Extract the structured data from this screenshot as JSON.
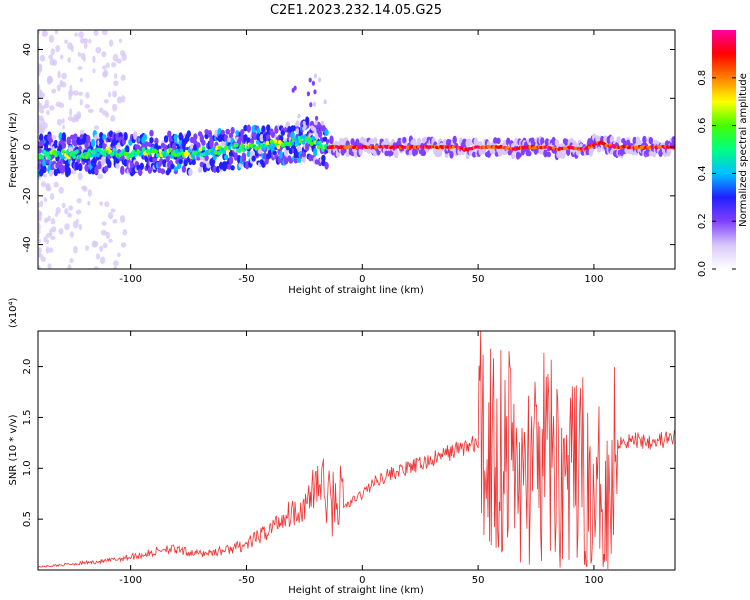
{
  "title": "C2E1.2023.232.14.05.G25",
  "chart_data": [
    {
      "type": "heatmap",
      "xlabel": "Height of straight line (km)",
      "ylabel": "Frequency (Hz)",
      "xlim": [
        -140,
        135
      ],
      "ylim": [
        -50,
        48
      ],
      "xticks": [
        -100,
        -50,
        0,
        50,
        100
      ],
      "yticks": [
        -40,
        -20,
        0,
        20,
        40
      ],
      "ridge": {
        "x": [
          -140,
          -125,
          -110,
          -100,
          -90,
          -80,
          -70,
          -60,
          -50,
          -40,
          -30,
          -25,
          -20,
          -17,
          -15,
          -10,
          0,
          10,
          20,
          30,
          40,
          45,
          50,
          60,
          65,
          70,
          75,
          80,
          85,
          90,
          95,
          100,
          103,
          105,
          110,
          120,
          135
        ],
        "y": [
          -3,
          -3,
          -2,
          -3,
          -2,
          -3,
          -2,
          -1,
          0,
          1,
          2,
          3,
          2,
          0,
          0,
          0,
          0,
          0,
          0,
          0,
          0,
          -1,
          0,
          0,
          -1,
          0,
          0,
          0,
          -1,
          0,
          -1,
          1,
          2,
          1,
          0,
          0,
          0
        ]
      },
      "colorbar": {
        "label": "Normalized spectral amplitude",
        "range": [
          0,
          1
        ],
        "ticks": [
          0.0,
          0.2,
          0.4,
          0.6,
          0.8
        ],
        "tick_labels": [
          "0.0",
          "0.2",
          "0.4",
          "0.6",
          "0.8"
        ],
        "colormap": [
          "#ffffff",
          "#d8c8f8",
          "#8040ff",
          "#2020ff",
          "#00c0ff",
          "#00ff80",
          "#40ff00",
          "#ffff00",
          "#ff8000",
          "#ff0000",
          "#ff00a0"
        ]
      }
    },
    {
      "type": "line",
      "xlabel": "Height of straight line (km)",
      "ylabel": "SNR (10 * v/v)",
      "scale_label": "(x10⁴)",
      "xlim": [
        -140,
        135
      ],
      "ylim": [
        0,
        2.35
      ],
      "xticks": [
        -100,
        -50,
        0,
        50,
        100
      ],
      "yticks": [
        0.5,
        1.0,
        1.5,
        2.0
      ],
      "ytick_labels": [
        "0.5",
        "1.0",
        "1.5",
        "2.0"
      ],
      "color": "#ee3333",
      "series": [
        {
          "x": [
            -140,
            -130,
            -120,
            -110,
            -100,
            -90,
            -85,
            -80,
            -70,
            -60,
            -50,
            -45,
            -40,
            -35,
            -30,
            -25,
            -20,
            -17,
            -14,
            -10,
            -5,
            0,
            5,
            10,
            20,
            30,
            40,
            50,
            55,
            60,
            65,
            70,
            72,
            75,
            80,
            85,
            90,
            95,
            100,
            103,
            107,
            110,
            115,
            120,
            130,
            135
          ],
          "y": [
            0.03,
            0.05,
            0.07,
            0.09,
            0.13,
            0.17,
            0.22,
            0.19,
            0.16,
            0.19,
            0.25,
            0.32,
            0.4,
            0.5,
            0.58,
            0.62,
            0.75,
            0.68,
            0.55,
            0.6,
            0.66,
            0.75,
            0.86,
            0.93,
            1.0,
            1.08,
            1.18,
            1.25,
            1.25,
            1.22,
            1.15,
            0.75,
            1.1,
            0.9,
            1.15,
            0.95,
            0.9,
            1.0,
            0.55,
            0.9,
            0.75,
            1.28,
            1.27,
            1.28,
            1.28,
            1.28
          ]
        }
      ]
    }
  ]
}
